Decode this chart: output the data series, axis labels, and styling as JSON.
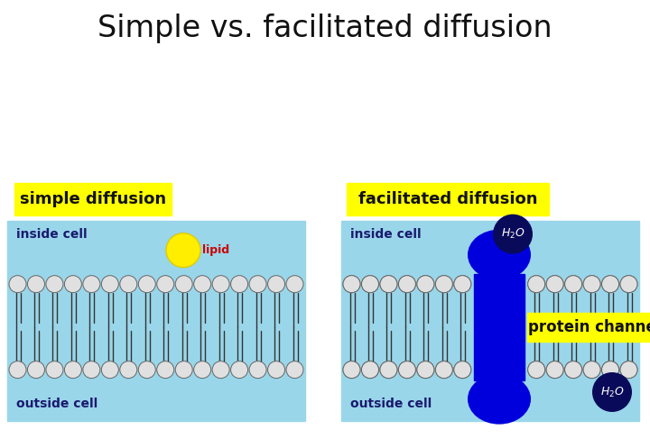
{
  "title": "Simple vs. facilitated diffusion",
  "title_fontsize": 24,
  "title_color": "#111111",
  "bg_color": "#ffffff",
  "panel_bg": "#99d6ea",
  "label_simple": "simple diffusion",
  "label_facilitated": "facilitated diffusion",
  "label_bg": "#ffff00",
  "label_color": "#111111",
  "label_fontsize": 13,
  "inside_label": "inside cell",
  "outside_label": "outside cell",
  "cell_label_color": "#1a1a6e",
  "cell_label_fontsize": 10,
  "lipid_head_color": "#e0e0e0",
  "lipid_head_edge": "#666666",
  "lipid_label": "lipid",
  "lipid_label_color": "#cc0000",
  "lipid_circle_color": "#ffee00",
  "lipid_circle_edge": "#ddcc00",
  "protein_blue": "#0000dd",
  "protein_dark": "#0a0a5a",
  "h2o_bg": "#0a0a5a",
  "h2o_color": "#ffffff",
  "h2o_fontsize": 9,
  "protein_channel_label": "protein channel",
  "protein_channel_bg": "#ffff00",
  "protein_channel_color": "#111111",
  "protein_channel_fontsize": 12
}
